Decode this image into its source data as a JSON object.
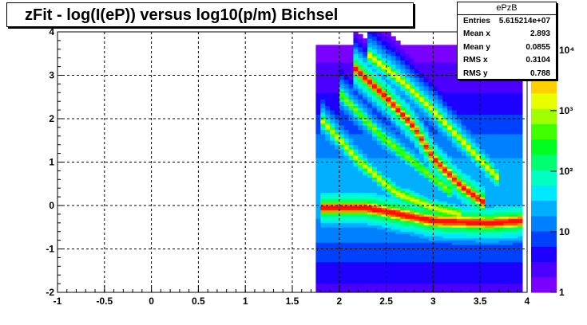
{
  "title": "zFit - log(I(eP)) versus log10(p/m) Bichsel",
  "stats": {
    "name": "ePzB",
    "rows": [
      {
        "label": "Entries",
        "value": "5.615214e+07"
      },
      {
        "label": "Mean x",
        "value": "2.893"
      },
      {
        "label": "Mean y",
        "value": "0.0855"
      },
      {
        "label": "RMS x",
        "value": "0.3104"
      },
      {
        "label": "RMS y",
        "value": "0.788"
      }
    ]
  },
  "chart_data": {
    "type": "heatmap",
    "title": "zFit - log(I(eP)) versus log10(p/m) Bichsel",
    "xlim": [
      -1,
      4
    ],
    "ylim": [
      -2,
      4
    ],
    "x_ticks": [
      "-1",
      "-0.5",
      "0",
      "0.5",
      "1",
      "1.5",
      "2",
      "2.5",
      "3",
      "3.5",
      "4"
    ],
    "y_ticks": [
      "-2",
      "-1",
      "0",
      "1",
      "2",
      "3",
      "4"
    ],
    "z_scale": "log",
    "z_ticks": [
      {
        "value": 1,
        "label": "1"
      },
      {
        "value": 10,
        "label": "10"
      },
      {
        "value": 100,
        "label": "10²"
      },
      {
        "value": 1000,
        "label": "10³"
      },
      {
        "value": 10000,
        "label": "10⁴"
      }
    ],
    "grid": true,
    "colors": [
      "#7a00ff",
      "#4b00ff",
      "#1e00ff",
      "#0040ff",
      "#0080ff",
      "#00b0ff",
      "#00e8ff",
      "#00ffc0",
      "#00ff70",
      "#00ff20",
      "#40ff00",
      "#a0ff00",
      "#e8ff00",
      "#ffd000",
      "#ff9000",
      "#ff5000",
      "#ff1000"
    ],
    "bands": [
      {
        "x": [
          1.8,
          2.3,
          3.0,
          3.6,
          3.95
        ],
        "y": [
          -0.05,
          -0.05,
          -0.35,
          -0.4,
          -0.35
        ],
        "peak": 4.3
      },
      {
        "x": [
          1.8,
          2.2,
          2.6,
          3.0,
          3.3
        ],
        "y": [
          2.0,
          1.05,
          0.3,
          -0.05,
          -0.2
        ],
        "peak": 3.1
      },
      {
        "x": [
          2.15,
          2.5,
          2.8,
          3.0,
          3.3,
          3.55
        ],
        "y": [
          3.2,
          2.5,
          1.8,
          1.1,
          0.45,
          0.05
        ],
        "peak": 4.2
      },
      {
        "x": [
          2.3,
          2.65,
          3.0,
          3.35,
          3.7
        ],
        "y": [
          3.5,
          2.9,
          2.2,
          1.4,
          0.6
        ],
        "peak": 3.2
      },
      {
        "x": [
          2.0,
          2.45,
          2.85,
          3.2
        ],
        "y": [
          2.6,
          1.6,
          0.9,
          0.3
        ],
        "peak": 2.8
      }
    ],
    "background": {
      "x_min": 1.75,
      "x_max": 3.95,
      "peak": 1.4
    }
  }
}
